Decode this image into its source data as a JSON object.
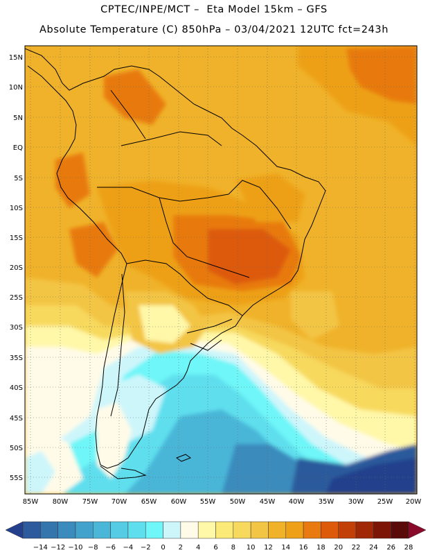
{
  "header": {
    "line1": "CPTEC/INPE/MCT –  Eta Model 15km – GFS",
    "line2": "Absolute Temperature (C) 850hPa – 03/04/2021 12UTC fct=243h"
  },
  "axes": {
    "lat_labels": [
      "15N",
      "10N",
      "5N",
      "EQ",
      "5S",
      "10S",
      "15S",
      "20S",
      "25S",
      "30S",
      "35S",
      "40S",
      "45S",
      "50S",
      "55S"
    ],
    "lon_labels": [
      "85W",
      "80W",
      "75W",
      "70W",
      "65W",
      "60W",
      "55W",
      "50W",
      "45W",
      "40W",
      "35W",
      "30W",
      "25W",
      "20W"
    ]
  },
  "colorbar": {
    "labels": [
      "-14",
      "-12",
      "-10",
      "-8",
      "-6",
      "-4",
      "-2",
      "0",
      "2",
      "4",
      "6",
      "8",
      "10",
      "12",
      "14",
      "16",
      "18",
      "20",
      "22",
      "24",
      "26",
      "28"
    ],
    "colors": [
      "#243f8c",
      "#2c5a9c",
      "#3575ad",
      "#3b8bbd",
      "#42a2cb",
      "#4ab6d8",
      "#55cbe4",
      "#5fdfee",
      "#6ef6f8",
      "#cdf6fb",
      "#fffbe8",
      "#fff8a8",
      "#fbea78",
      "#f7d95d",
      "#f3c544",
      "#f0b22a",
      "#eda018",
      "#e87a10",
      "#dd5a0b",
      "#c23f07",
      "#a02806",
      "#7c1506",
      "#5b0a0a",
      "#8a0a2b"
    ]
  }
}
